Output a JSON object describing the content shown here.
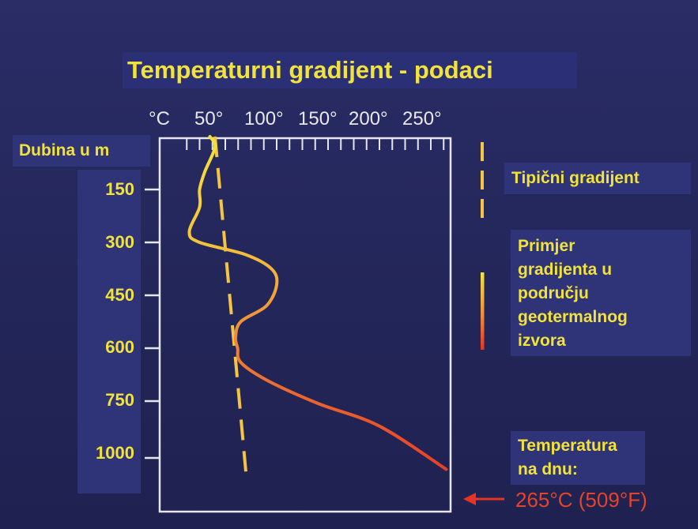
{
  "chart_data": {
    "type": "line",
    "title": "Temperaturni gradijent - podaci",
    "ylabel": "Dubina u m",
    "xunit": "°C",
    "x_ticks": [
      "50°",
      "100°",
      "150°",
      "200°",
      "250°"
    ],
    "y_ticks": [
      "150",
      "300",
      "450",
      "600",
      "750",
      "1000"
    ],
    "series": [
      {
        "name": "Tipični gradijent",
        "style": "dashed",
        "color": "#f4c542",
        "points": [
          [
            40,
            0
          ],
          [
            70,
            1060
          ]
        ]
      },
      {
        "name": "Primjer gradijenta u području geotermalnog izvora",
        "style": "gradient",
        "color_start": "#f2e33a",
        "color_end": "#e63322",
        "points": [
          [
            35,
            0
          ],
          [
            40,
            30
          ],
          [
            30,
            100
          ],
          [
            25,
            150
          ],
          [
            25,
            200
          ],
          [
            15,
            270
          ],
          [
            25,
            300
          ],
          [
            70,
            335
          ],
          [
            95,
            375
          ],
          [
            100,
            420
          ],
          [
            90,
            480
          ],
          [
            65,
            525
          ],
          [
            60,
            570
          ],
          [
            62,
            600
          ],
          [
            65,
            640
          ],
          [
            90,
            690
          ],
          [
            140,
            760
          ],
          [
            200,
            860
          ],
          [
            265,
            1050
          ]
        ]
      }
    ],
    "legend": [
      "Tipični gradijent",
      "Primjer gradijenta u području geotermalnog izvora"
    ],
    "annotation": "Temperatura na dnu:"
  },
  "legend": {
    "typical": "Tipični gradijent",
    "example_lines": [
      "Primjer",
      "gradijenta u",
      "području",
      "geotermalnog",
      "izvora"
    ],
    "bottom_lines": [
      "Temperatura",
      "na dnu:"
    ],
    "bottom_value": "265°C (509°F)"
  },
  "colors": {
    "title": "#f2e33a",
    "dashed": "#f4c542",
    "arrow": "#e63322"
  }
}
